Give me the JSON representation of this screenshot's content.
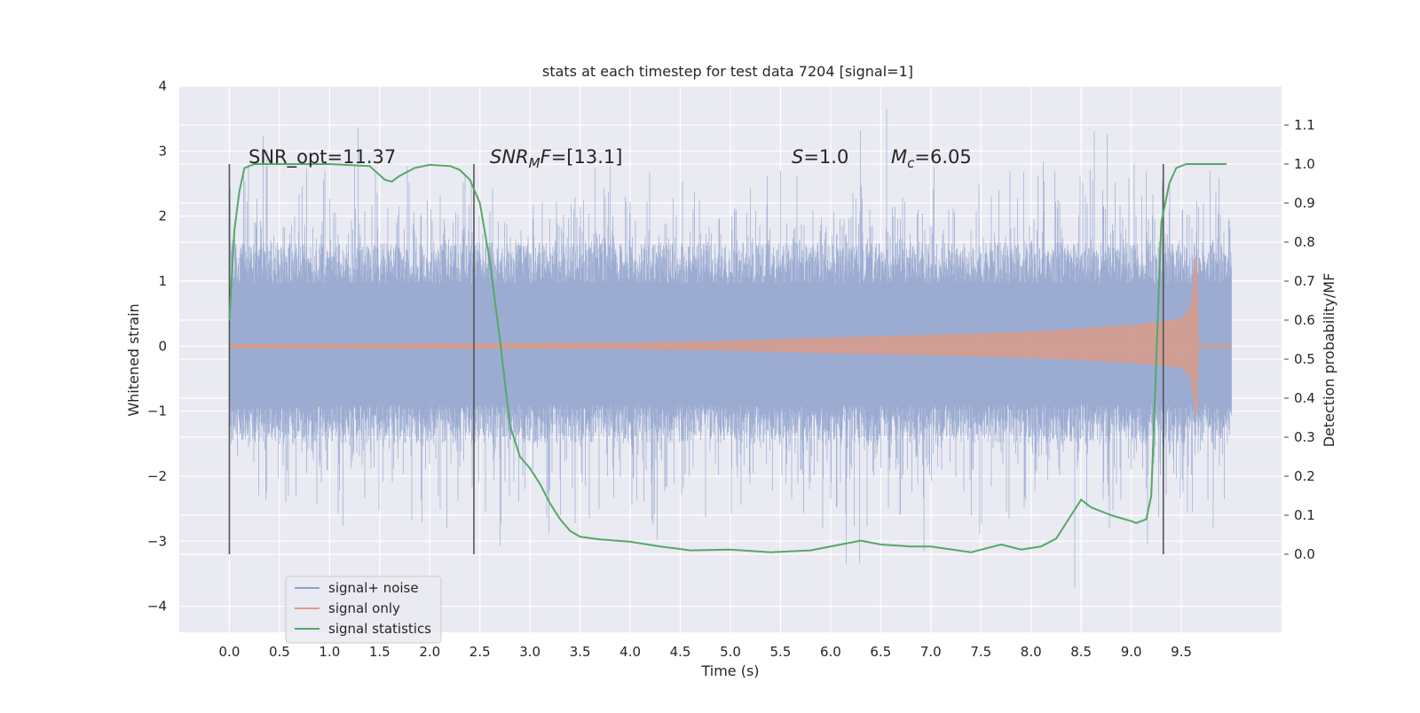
{
  "chart_data": {
    "type": "line",
    "title": "stats at each timestep for test data 7204 [signal=1]",
    "xlabel": "Time (s)",
    "ylabel": "Whitened strain",
    "y2label": "Detection probability/MF",
    "xlim": [
      -0.5,
      10.5
    ],
    "ylim": [
      -4.4,
      4.0
    ],
    "y2lim": [
      -0.2,
      1.2
    ],
    "x_ticks": [
      "0.0",
      "0.5",
      "1.0",
      "1.5",
      "2.0",
      "2.5",
      "3.0",
      "3.5",
      "4.0",
      "4.5",
      "5.0",
      "5.5",
      "6.0",
      "6.5",
      "7.0",
      "7.5",
      "8.0",
      "8.5",
      "9.0",
      "9.5"
    ],
    "y_ticks": [
      "4",
      "3",
      "2",
      "1",
      "0",
      "−1",
      "−2",
      "−3",
      "−4"
    ],
    "y2_ticks": [
      "1.1",
      "1.0",
      "0.9",
      "0.8",
      "0.7",
      "0.6",
      "0.5",
      "0.4",
      "0.3",
      "0.2",
      "0.1",
      "0.0"
    ],
    "grid": true,
    "legend_position": "lower-left",
    "annotations": {
      "snr_opt": "SNR_opt=11.37",
      "snr_mf_prefix": "SNR",
      "snr_mf_sub": "M",
      "snr_mf_f": "F",
      "snr_mf_value": "=[13.1]",
      "s_symbol": "S",
      "s_value": "=1.0",
      "mc_symbol": "M",
      "mc_sub": "c",
      "mc_value": "=6.05"
    },
    "vertical_lines_x": [
      0.0,
      2.44,
      9.32
    ],
    "vertical_lines_y_range": [
      -3.2,
      2.8
    ],
    "colors": {
      "background": "#eaeaf2",
      "grid": "#ffffff",
      "noise": "#8da0cb",
      "signal": "#e29a80",
      "statistic": "#55a868",
      "vline": "#555555"
    },
    "series": [
      {
        "name": "signal+ noise",
        "x_range": [
          0.0,
          10.0
        ],
        "envelope_typical": [
          -1.5,
          1.6
        ],
        "envelope_extreme": [
          -4.05,
          3.65
        ]
      },
      {
        "name": "signal only",
        "x_range": [
          0.0,
          10.0
        ],
        "envelope": {
          "x": [
            0.0,
            2.0,
            4.0,
            5.0,
            6.0,
            7.0,
            8.0,
            9.0,
            9.5,
            9.6,
            9.65,
            9.67,
            10.0
          ],
          "y": [
            0.01,
            0.02,
            0.03,
            0.06,
            0.11,
            0.15,
            0.2,
            0.3,
            0.4,
            0.6,
            1.4,
            0.0,
            0.0
          ]
        }
      },
      {
        "name": "signal statistics",
        "x": [
          0.0,
          0.05,
          0.1,
          0.15,
          0.25,
          0.5,
          1.0,
          1.4,
          1.55,
          1.62,
          1.7,
          1.85,
          2.0,
          2.2,
          2.3,
          2.4,
          2.5,
          2.6,
          2.7,
          2.8,
          2.9,
          3.0,
          3.1,
          3.2,
          3.3,
          3.4,
          3.5,
          3.7,
          4.0,
          4.3,
          4.6,
          5.0,
          5.4,
          5.8,
          6.1,
          6.3,
          6.5,
          6.8,
          7.0,
          7.4,
          7.7,
          7.9,
          8.1,
          8.25,
          8.4,
          8.5,
          8.6,
          8.8,
          9.0,
          9.05,
          9.15,
          9.2,
          9.25,
          9.3,
          9.38,
          9.45,
          9.55,
          9.75,
          9.95
        ],
        "y": [
          0.6,
          0.83,
          0.93,
          0.99,
          1.0,
          1.0,
          1.0,
          0.995,
          0.96,
          0.955,
          0.97,
          0.99,
          0.998,
          0.995,
          0.985,
          0.96,
          0.9,
          0.75,
          0.55,
          0.33,
          0.25,
          0.22,
          0.18,
          0.13,
          0.09,
          0.06,
          0.045,
          0.038,
          0.032,
          0.02,
          0.01,
          0.012,
          0.005,
          0.01,
          0.025,
          0.035,
          0.025,
          0.02,
          0.02,
          0.005,
          0.025,
          0.012,
          0.02,
          0.04,
          0.1,
          0.14,
          0.12,
          0.1,
          0.085,
          0.08,
          0.09,
          0.15,
          0.5,
          0.85,
          0.95,
          0.99,
          1.0,
          1.0,
          1.0
        ]
      }
    ]
  }
}
